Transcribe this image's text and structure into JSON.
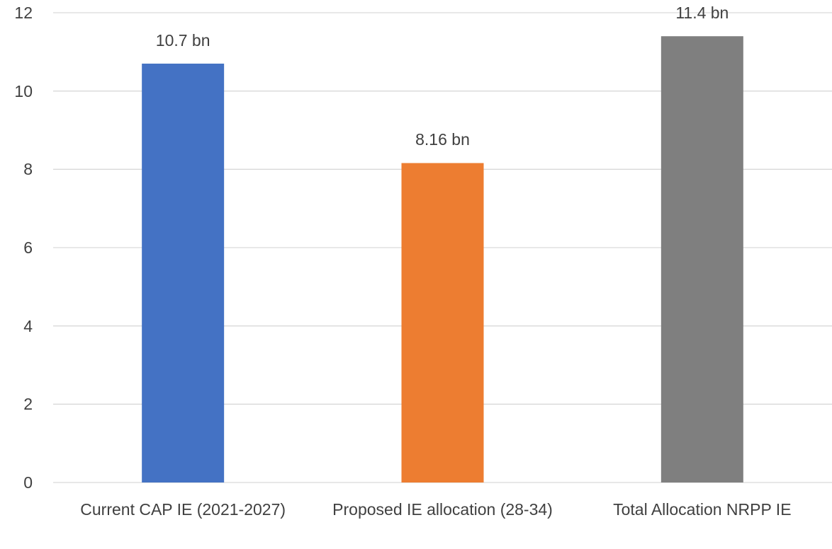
{
  "chart_data": {
    "type": "bar",
    "categories": [
      "Current CAP IE (2021-2027)",
      "Proposed IE allocation (28-34)",
      "Total Allocation NRPP IE"
    ],
    "values": [
      10.7,
      8.16,
      11.4
    ],
    "value_labels": [
      "10.7 bn",
      "8.16 bn",
      "11.4 bn"
    ],
    "colors": [
      "#4472c4",
      "#ed7d31",
      "#7f7f7f"
    ],
    "ylim": [
      0,
      12
    ],
    "yticks": [
      0,
      2,
      4,
      6,
      8,
      10,
      12
    ],
    "grid": true
  }
}
